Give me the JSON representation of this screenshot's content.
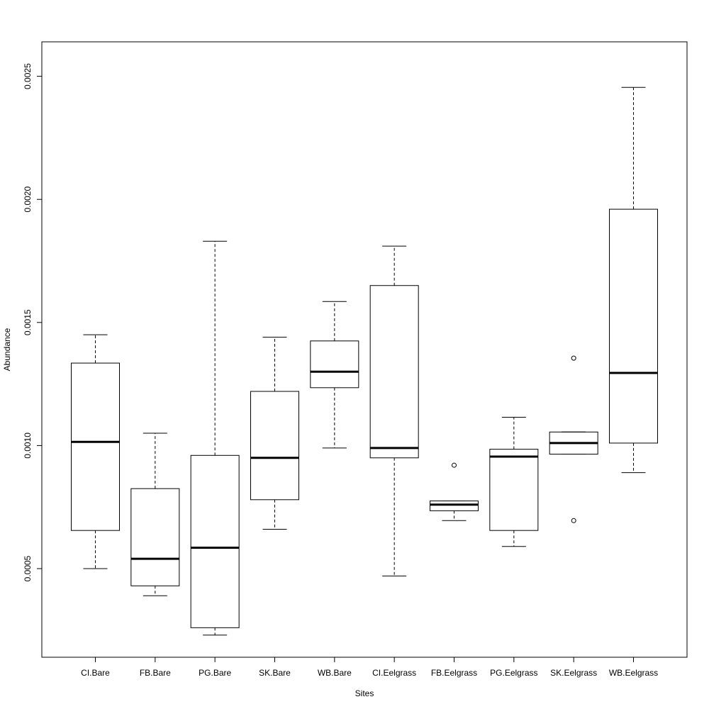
{
  "chart_data": {
    "type": "boxplot",
    "title": "",
    "xlabel": "Sites",
    "ylabel": "Abundance",
    "ylim": [
      0.00014,
      0.00264
    ],
    "y_ticks": [
      0.0005,
      0.001,
      0.0015,
      0.002,
      0.0025
    ],
    "y_tick_labels": [
      "0.0005",
      "0.0010",
      "0.0015",
      "0.0020",
      "0.0025"
    ],
    "categories": [
      "CI.Bare",
      "FB.Bare",
      "PG.Bare",
      "SK.Bare",
      "WB.Bare",
      "CI.Eelgrass",
      "FB.Eelgrass",
      "PG.Eelgrass",
      "SK.Eelgrass",
      "WB.Eelgrass"
    ],
    "boxes": [
      {
        "whisker_low": 0.0005,
        "q1": 0.000655,
        "median": 0.001015,
        "q3": 0.001335,
        "whisker_high": 0.00145,
        "outliers": []
      },
      {
        "whisker_low": 0.00039,
        "q1": 0.00043,
        "median": 0.00054,
        "q3": 0.000825,
        "whisker_high": 0.00105,
        "outliers": []
      },
      {
        "whisker_low": 0.00023,
        "q1": 0.00026,
        "median": 0.000585,
        "q3": 0.00096,
        "whisker_high": 0.00183,
        "outliers": []
      },
      {
        "whisker_low": 0.00066,
        "q1": 0.00078,
        "median": 0.00095,
        "q3": 0.00122,
        "whisker_high": 0.00144,
        "outliers": []
      },
      {
        "whisker_low": 0.00099,
        "q1": 0.001235,
        "median": 0.0013,
        "q3": 0.001425,
        "whisker_high": 0.001585,
        "outliers": []
      },
      {
        "whisker_low": 0.00047,
        "q1": 0.00095,
        "median": 0.00099,
        "q3": 0.00165,
        "whisker_high": 0.00181,
        "outliers": []
      },
      {
        "whisker_low": 0.000695,
        "q1": 0.000735,
        "median": 0.00076,
        "q3": 0.000775,
        "whisker_high": 0.000775,
        "outliers": [
          0.00092
        ]
      },
      {
        "whisker_low": 0.00059,
        "q1": 0.000655,
        "median": 0.000955,
        "q3": 0.000985,
        "whisker_high": 0.001115,
        "outliers": []
      },
      {
        "whisker_low": 0.000965,
        "q1": 0.000965,
        "median": 0.00101,
        "q3": 0.001055,
        "whisker_high": 0.001055,
        "outliers": [
          0.001355,
          0.000695
        ]
      },
      {
        "whisker_low": 0.00089,
        "q1": 0.00101,
        "median": 0.001295,
        "q3": 0.00196,
        "whisker_high": 0.002455,
        "outliers": []
      }
    ]
  }
}
